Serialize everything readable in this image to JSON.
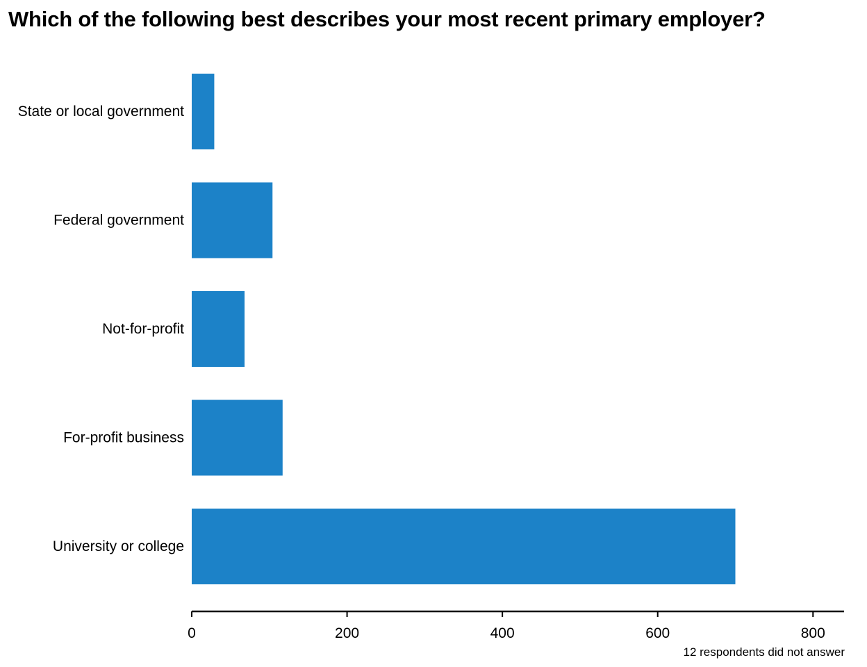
{
  "chart_data": {
    "type": "bar",
    "orientation": "horizontal",
    "title": "Which of the following best describes your most recent primary employer?",
    "categories": [
      "State or local government",
      "Federal government",
      "Not-for-profit",
      "For-profit business",
      "University or college"
    ],
    "values": [
      29,
      104,
      68,
      117,
      700
    ],
    "xlim": [
      0,
      840
    ],
    "x_ticks": [
      0,
      200,
      400,
      600,
      800
    ],
    "xlabel": "",
    "ylabel": "",
    "grid": false,
    "bar_color": "#1c82c8",
    "footnote": "12 respondents did not answer"
  }
}
